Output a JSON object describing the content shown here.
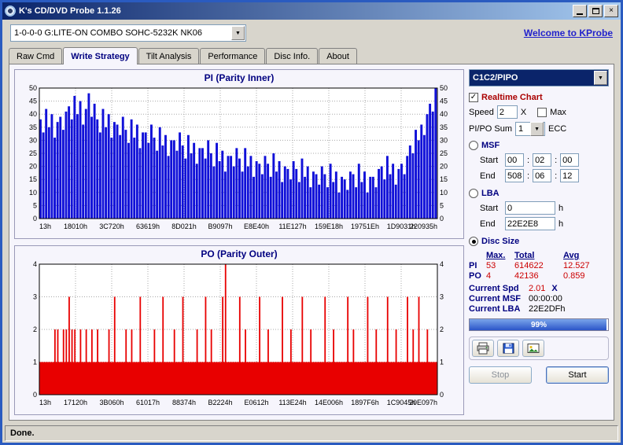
{
  "window": {
    "title": "K's CD/DVD Probe 1.1.26",
    "status": "Done."
  },
  "glyphs": {
    "chevron_down": "▼",
    "close": "×",
    "check": "✓",
    "colon": ":"
  },
  "toolbar": {
    "drive_combo": "1-0-0-0 G:LITE-ON COMBO SOHC-5232K NK06",
    "welcome_link": "Welcome to KProbe"
  },
  "tabs": [
    {
      "label": "Raw Cmd"
    },
    {
      "label": "Write Strategy"
    },
    {
      "label": "Tilt Analysis"
    },
    {
      "label": "Performance"
    },
    {
      "label": "Disc Info."
    },
    {
      "label": "About"
    }
  ],
  "controls": {
    "mode_combo": "C1C2/PIPO",
    "realtime_label": "Realtime Chart",
    "speed_label": "Speed",
    "speed_value": "2",
    "speed_unit": "X",
    "max_label": "Max",
    "pipo_sum_label": "PI/PO Sum",
    "pipo_sum_value": "1",
    "ecc_label": "ECC",
    "msf_label": "MSF",
    "start_label": "Start",
    "end_label": "End",
    "msf_start": [
      "00",
      "02",
      "00"
    ],
    "msf_end": [
      "508",
      "06",
      "12"
    ],
    "lba_label": "LBA",
    "lba_start": "0",
    "lba_end": "22E2E8",
    "hex_unit": "h",
    "disc_size_label": "Disc Size",
    "stats": {
      "headers": [
        "Max.",
        "Total",
        "Avg"
      ],
      "rows": [
        {
          "label": "PI",
          "max": "53",
          "total": "614622",
          "avg": "12.527"
        },
        {
          "label": "PO",
          "max": "4",
          "total": "42136",
          "avg": "0.859"
        }
      ]
    },
    "current_spd_label": "Current Spd",
    "current_spd_value": "2.01",
    "current_spd_unit": "X",
    "current_msf_label": "Current MSF",
    "current_msf_value": "00:00:00",
    "current_lba_label": "Current LBA",
    "current_lba_value": "22E2DFh",
    "progress": {
      "percent": 99,
      "text": "99%"
    },
    "stop_label": "Stop",
    "start_button_label": "Start"
  },
  "chart_data": [
    {
      "type": "bar",
      "title": "PI (Parity Inner)",
      "color": "#1010d8",
      "ylim": [
        0,
        50
      ],
      "ytick_step": 5,
      "x_labels": [
        "13h",
        "18010h",
        "3C720h",
        "63619h",
        "8D021h",
        "B9097h",
        "E8E40h",
        "11E127h",
        "159E18h",
        "19751Eh",
        "1D9031h",
        "220935h"
      ],
      "values": [
        38,
        33,
        42,
        35,
        40,
        31,
        37,
        39,
        34,
        41,
        43,
        38,
        47,
        40,
        45,
        36,
        42,
        48,
        39,
        44,
        38,
        33,
        42,
        35,
        40,
        31,
        37,
        36,
        32,
        39,
        34,
        29,
        38,
        31,
        36,
        27,
        33,
        33,
        29,
        36,
        31,
        26,
        35,
        28,
        32,
        24,
        30,
        30,
        26,
        33,
        28,
        23,
        32,
        25,
        29,
        21,
        27,
        27,
        23,
        30,
        25,
        20,
        29,
        22,
        26,
        18,
        24,
        24,
        20,
        27,
        23,
        18,
        27,
        20,
        24,
        16,
        22,
        21,
        17,
        24,
        21,
        16,
        25,
        18,
        22,
        14,
        20,
        19,
        15,
        22,
        19,
        14,
        23,
        16,
        20,
        12,
        18,
        17,
        13,
        20,
        17,
        12,
        21,
        14,
        18,
        10,
        16,
        15,
        11,
        18,
        17,
        12,
        21,
        14,
        18,
        10,
        16,
        16,
        12,
        19,
        20,
        15,
        24,
        17,
        21,
        13,
        19,
        21,
        17,
        24,
        28,
        25,
        34,
        30,
        36,
        32,
        40,
        44,
        41,
        52
      ]
    },
    {
      "type": "bar",
      "title": "PO (Parity Outer)",
      "color": "#e80000",
      "ylim": [
        0,
        4
      ],
      "ytick_step": 1,
      "baseline": 1,
      "x_labels": [
        "13h",
        "17120h",
        "3B060h",
        "61017h",
        "88374h",
        "B2224h",
        "E0612h",
        "113E24h",
        "14E006h",
        "1897F6h",
        "1C9045h",
        "20E097h"
      ],
      "values": [
        1,
        1,
        1,
        1,
        1,
        2,
        2,
        1,
        2,
        2,
        3,
        2,
        2,
        1,
        2,
        1,
        2,
        1,
        2,
        1,
        2,
        1,
        1,
        1,
        2,
        1,
        3,
        1,
        1,
        1,
        2,
        1,
        2,
        1,
        1,
        3,
        1,
        1,
        1,
        1,
        2,
        1,
        1,
        3,
        1,
        1,
        1,
        2,
        1,
        1,
        3,
        1,
        1,
        1,
        1,
        2,
        1,
        1,
        3,
        1,
        2,
        1,
        1,
        1,
        3,
        4,
        1,
        1,
        1,
        1,
        3,
        1,
        2,
        1,
        1,
        1,
        1,
        3,
        1,
        1,
        2,
        1,
        1,
        1,
        1,
        3,
        1,
        1,
        2,
        1,
        1,
        1,
        3,
        1,
        1,
        2,
        1,
        1,
        1,
        1,
        3,
        1,
        1,
        2,
        1,
        1,
        1,
        1,
        3,
        1,
        2,
        1,
        1,
        1,
        1,
        3,
        1,
        1,
        2,
        1,
        1,
        1,
        3,
        1,
        1,
        2,
        1,
        1,
        1,
        3,
        1,
        2,
        1,
        3,
        1,
        1,
        2,
        1,
        1,
        1
      ]
    }
  ]
}
